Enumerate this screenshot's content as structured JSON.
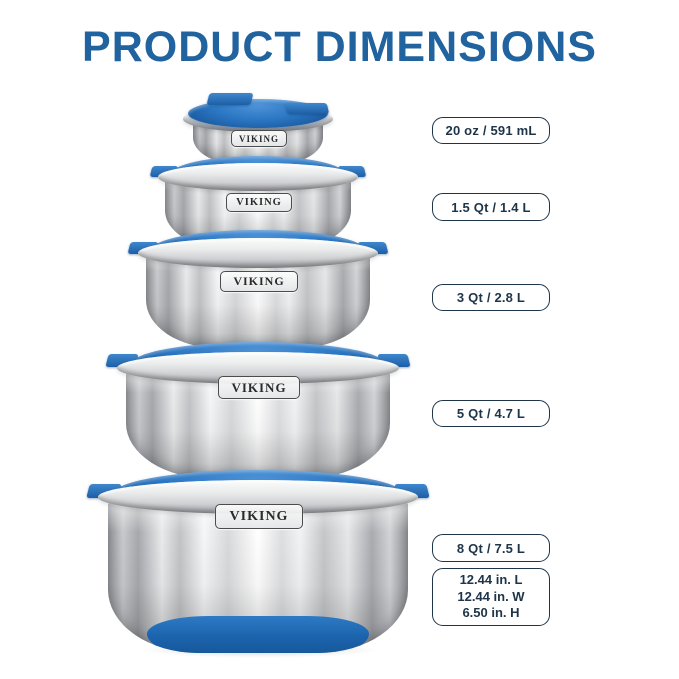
{
  "title": "PRODUCT DIMENSIONS",
  "brand": "VIKING",
  "bowls": [
    {
      "capacity_label": "20 oz / 591 mL"
    },
    {
      "capacity_label": "1.5 Qt / 1.4 L"
    },
    {
      "capacity_label": "3 Qt / 2.8 L"
    },
    {
      "capacity_label": "5 Qt / 4.7 L"
    },
    {
      "capacity_label": "8 Qt / 7.5 L"
    }
  ],
  "dimensions_box": {
    "line1": "12.44 in. L",
    "line2": "12.44 in. W",
    "line3": "6.50 in. H"
  },
  "colors": {
    "title_blue": "#20639f",
    "label_navy": "#1e3448",
    "lid_blue": "#2470bd",
    "base_blue": "#1e6cb5"
  }
}
